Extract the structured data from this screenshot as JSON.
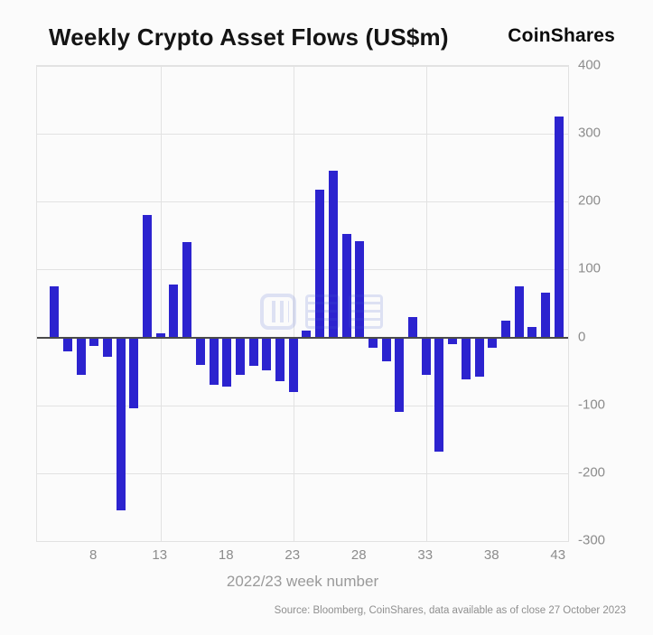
{
  "header": {
    "title": "Weekly Crypto Asset Flows (US$m)",
    "logo": "CoinShares"
  },
  "chart_data": {
    "type": "bar",
    "title": "Weekly Crypto Asset Flows (US$m)",
    "xlabel": "2022/23 week number",
    "ylabel": "",
    "x": [
      5,
      6,
      7,
      8,
      9,
      10,
      11,
      12,
      13,
      14,
      15,
      16,
      17,
      18,
      19,
      20,
      21,
      22,
      23,
      24,
      25,
      26,
      27,
      28,
      29,
      30,
      31,
      32,
      33,
      34,
      35,
      36,
      37,
      38,
      39,
      40,
      41,
      42,
      43
    ],
    "values": [
      75,
      -20,
      -55,
      -12,
      -28,
      -255,
      -105,
      180,
      6,
      78,
      140,
      -40,
      -70,
      -72,
      -55,
      -42,
      -48,
      -65,
      -80,
      10,
      218,
      245,
      152,
      142,
      -15,
      -35,
      -110,
      30,
      -55,
      -168,
      -10,
      -62,
      -58,
      -15,
      25,
      75,
      15,
      66,
      326
    ],
    "xticks": [
      8,
      13,
      18,
      23,
      28,
      33,
      38,
      43
    ],
    "yticks": [
      400,
      300,
      200,
      100,
      0,
      -100,
      -200,
      -300
    ],
    "x_gridlines": [
      13,
      23,
      33
    ],
    "xlim": [
      3.7,
      43.7
    ],
    "ylim": [
      -300,
      400
    ],
    "bar_color": "#2c23cf",
    "grid": true,
    "legend": "none"
  },
  "footer": {
    "source": "Source: Bloomberg, CoinShares, data available as of close 27 October 2023"
  }
}
